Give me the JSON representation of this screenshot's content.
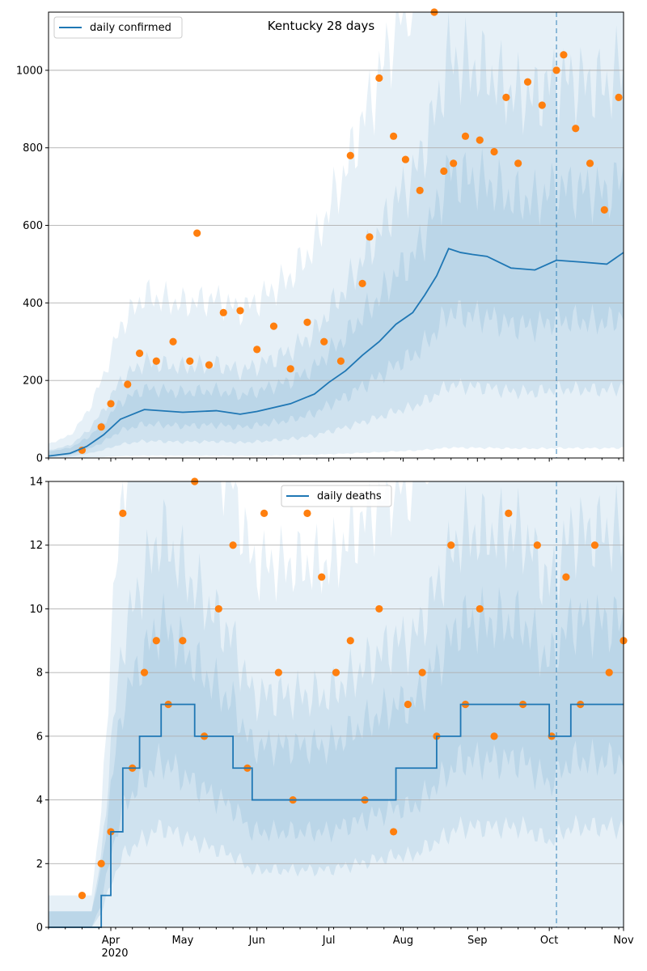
{
  "figure_title": "Kentucky 28 days",
  "colors": {
    "model_line": "#1f77b4",
    "observed_points": "#ff7f0e",
    "bands": "#1f77b4",
    "grid": "#b0b0b0",
    "forecast_marker": "#1f77b4"
  },
  "x_axis": {
    "tick_labels": [
      "Apr",
      "May",
      "Jun",
      "Jul",
      "Aug",
      "Sep",
      "Oct",
      "Nov"
    ],
    "year_label": "2020",
    "range": [
      "2020-03-06",
      "2020-11-01"
    ],
    "forecast_start": "2020-10-04"
  },
  "chart_data": [
    {
      "type": "line",
      "title": "Kentucky 28 days",
      "legend": {
        "entries": [
          "daily confirmed"
        ],
        "placement": "top-left"
      },
      "xlim": [
        "2020-03-06",
        "2020-11-01"
      ],
      "ylim": [
        0,
        1150
      ],
      "yticks": [
        0,
        200,
        400,
        600,
        800,
        1000
      ],
      "grid": "horizontal",
      "series": [
        {
          "name": "daily confirmed",
          "kind": "model median",
          "x": [
            "2020-03-06",
            "2020-03-15",
            "2020-03-22",
            "2020-03-29",
            "2020-04-05",
            "2020-04-15",
            "2020-05-01",
            "2020-05-15",
            "2020-05-25",
            "2020-06-01",
            "2020-06-15",
            "2020-06-25",
            "2020-07-01",
            "2020-07-08",
            "2020-07-15",
            "2020-07-22",
            "2020-07-29",
            "2020-08-05",
            "2020-08-10",
            "2020-08-15",
            "2020-08-20",
            "2020-08-25",
            "2020-08-30",
            "2020-09-05",
            "2020-09-15",
            "2020-09-25",
            "2020-10-04",
            "2020-10-15",
            "2020-10-25",
            "2020-11-01"
          ],
          "y": [
            5,
            12,
            30,
            60,
            100,
            125,
            118,
            122,
            113,
            120,
            140,
            165,
            195,
            225,
            265,
            300,
            345,
            375,
            420,
            470,
            540,
            530,
            525,
            520,
            490,
            485,
            510,
            505,
            500,
            530
          ]
        },
        {
          "name": "observed",
          "kind": "scatter",
          "x": [
            "2020-03-20",
            "2020-03-28",
            "2020-04-01",
            "2020-04-08",
            "2020-04-13",
            "2020-04-20",
            "2020-04-27",
            "2020-05-04",
            "2020-05-07",
            "2020-05-12",
            "2020-05-18",
            "2020-05-25",
            "2020-06-01",
            "2020-06-08",
            "2020-06-15",
            "2020-06-22",
            "2020-06-29",
            "2020-07-06",
            "2020-07-10",
            "2020-07-15",
            "2020-07-18",
            "2020-07-22",
            "2020-07-28",
            "2020-08-02",
            "2020-08-08",
            "2020-08-14",
            "2020-08-18",
            "2020-08-22",
            "2020-08-27",
            "2020-09-02",
            "2020-09-08",
            "2020-09-13",
            "2020-09-18",
            "2020-09-22",
            "2020-09-28",
            "2020-10-04",
            "2020-10-07",
            "2020-10-12",
            "2020-10-18",
            "2020-10-24",
            "2020-10-30"
          ],
          "y": [
            20,
            80,
            140,
            190,
            270,
            250,
            300,
            250,
            580,
            240,
            375,
            380,
            280,
            340,
            230,
            350,
            300,
            250,
            780,
            450,
            570,
            980,
            830,
            770,
            690,
            1150,
            740,
            760,
            830,
            820,
            790,
            930,
            760,
            970,
            910,
            1000,
            1040,
            850,
            760,
            640,
            930
          ]
        }
      ]
    },
    {
      "type": "line",
      "legend": {
        "entries": [
          "daily deaths"
        ],
        "placement": "top-center"
      },
      "xlim": [
        "2020-03-06",
        "2020-11-01"
      ],
      "ylim": [
        0,
        14
      ],
      "yticks": [
        0,
        2,
        4,
        6,
        8,
        10,
        12,
        14
      ],
      "grid": "horizontal",
      "series": [
        {
          "name": "daily deaths",
          "kind": "model median",
          "x": [
            "2020-03-06",
            "2020-03-24",
            "2020-03-28",
            "2020-04-01",
            "2020-04-06",
            "2020-04-13",
            "2020-04-22",
            "2020-05-06",
            "2020-05-22",
            "2020-05-30",
            "2020-06-10",
            "2020-07-01",
            "2020-07-29",
            "2020-08-05",
            "2020-08-15",
            "2020-08-25",
            "2020-09-05",
            "2020-09-20",
            "2020-10-01",
            "2020-10-10",
            "2020-10-20",
            "2020-11-01"
          ],
          "y": [
            0,
            0,
            1,
            3,
            5,
            6,
            7,
            6,
            5,
            4,
            4,
            4,
            5,
            5,
            6,
            7,
            7,
            7,
            6,
            7,
            7,
            7
          ]
        },
        {
          "name": "observed",
          "kind": "scatter",
          "x": [
            "2020-03-20",
            "2020-03-28",
            "2020-04-01",
            "2020-04-06",
            "2020-04-10",
            "2020-04-15",
            "2020-04-20",
            "2020-04-25",
            "2020-05-01",
            "2020-05-06",
            "2020-05-10",
            "2020-05-16",
            "2020-05-22",
            "2020-05-28",
            "2020-06-04",
            "2020-06-10",
            "2020-06-16",
            "2020-06-22",
            "2020-06-28",
            "2020-07-04",
            "2020-07-10",
            "2020-07-16",
            "2020-07-22",
            "2020-07-28",
            "2020-08-03",
            "2020-08-09",
            "2020-08-15",
            "2020-08-21",
            "2020-08-27",
            "2020-09-02",
            "2020-09-08",
            "2020-09-14",
            "2020-09-20",
            "2020-09-26",
            "2020-10-02",
            "2020-10-08",
            "2020-10-14",
            "2020-10-20",
            "2020-10-26",
            "2020-11-01"
          ],
          "y": [
            1,
            2,
            3,
            13,
            5,
            8,
            9,
            7,
            9,
            14,
            6,
            10,
            12,
            5,
            13,
            8,
            4,
            13,
            11,
            8,
            9,
            4,
            10,
            3,
            7,
            8,
            6,
            12,
            7,
            10,
            6,
            13,
            7,
            12,
            6,
            11,
            7,
            12,
            8,
            9
          ]
        }
      ]
    }
  ]
}
